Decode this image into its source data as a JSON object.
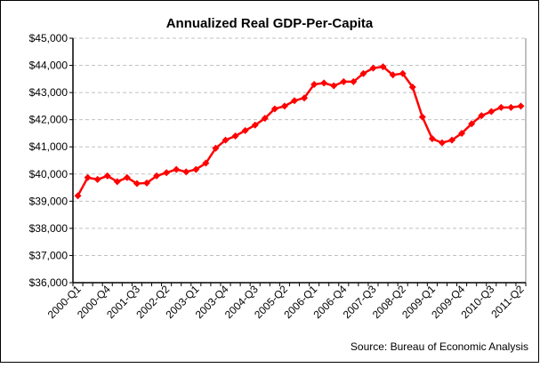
{
  "chart_data": {
    "type": "line",
    "title": "Annualized Real GDP-Per-Capita",
    "source": "Source: Bureau of Economic Analysis",
    "xlabel": "",
    "ylabel": "",
    "ylim": [
      36000,
      45000
    ],
    "yticks": [
      "$36,000",
      "$37,000",
      "$38,000",
      "$39,000",
      "$40,000",
      "$41,000",
      "$42,000",
      "$43,000",
      "$44,000",
      "$45,000"
    ],
    "xtick_labels": [
      "2000-Q1",
      "2000-Q4",
      "2001-Q3",
      "2002-Q2",
      "2003-Q1",
      "2003-Q4",
      "2004-Q3",
      "2005-Q2",
      "2006-Q1",
      "2006-Q4",
      "2007-Q3",
      "2008-Q2",
      "2009-Q1",
      "2009-Q4",
      "2010-Q3",
      "2011-Q2"
    ],
    "grid": "horizontal dashed",
    "color": "#ff0000",
    "categories": [
      "2000-Q1",
      "2000-Q2",
      "2000-Q3",
      "2000-Q4",
      "2001-Q1",
      "2001-Q2",
      "2001-Q3",
      "2001-Q4",
      "2002-Q1",
      "2002-Q2",
      "2002-Q3",
      "2002-Q4",
      "2003-Q1",
      "2003-Q2",
      "2003-Q3",
      "2003-Q4",
      "2004-Q1",
      "2004-Q2",
      "2004-Q3",
      "2004-Q4",
      "2005-Q1",
      "2005-Q2",
      "2005-Q3",
      "2005-Q4",
      "2006-Q1",
      "2006-Q2",
      "2006-Q3",
      "2006-Q4",
      "2007-Q1",
      "2007-Q2",
      "2007-Q3",
      "2007-Q4",
      "2008-Q1",
      "2008-Q2",
      "2008-Q3",
      "2008-Q4",
      "2009-Q1",
      "2009-Q2",
      "2009-Q3",
      "2009-Q4",
      "2010-Q1",
      "2010-Q2",
      "2010-Q3",
      "2010-Q4",
      "2011-Q1",
      "2011-Q2"
    ],
    "values": [
      39200,
      39870,
      39800,
      39930,
      39720,
      39870,
      39650,
      39670,
      39930,
      40050,
      40170,
      40080,
      40170,
      40400,
      40950,
      41250,
      41400,
      41600,
      41800,
      42050,
      42400,
      42500,
      42700,
      42800,
      43300,
      43350,
      43250,
      43400,
      43400,
      43700,
      43900,
      43950,
      43650,
      43700,
      43200,
      42100,
      41300,
      41150,
      41250,
      41500,
      41850,
      42150,
      42300,
      42450,
      42450,
      42500
    ]
  }
}
